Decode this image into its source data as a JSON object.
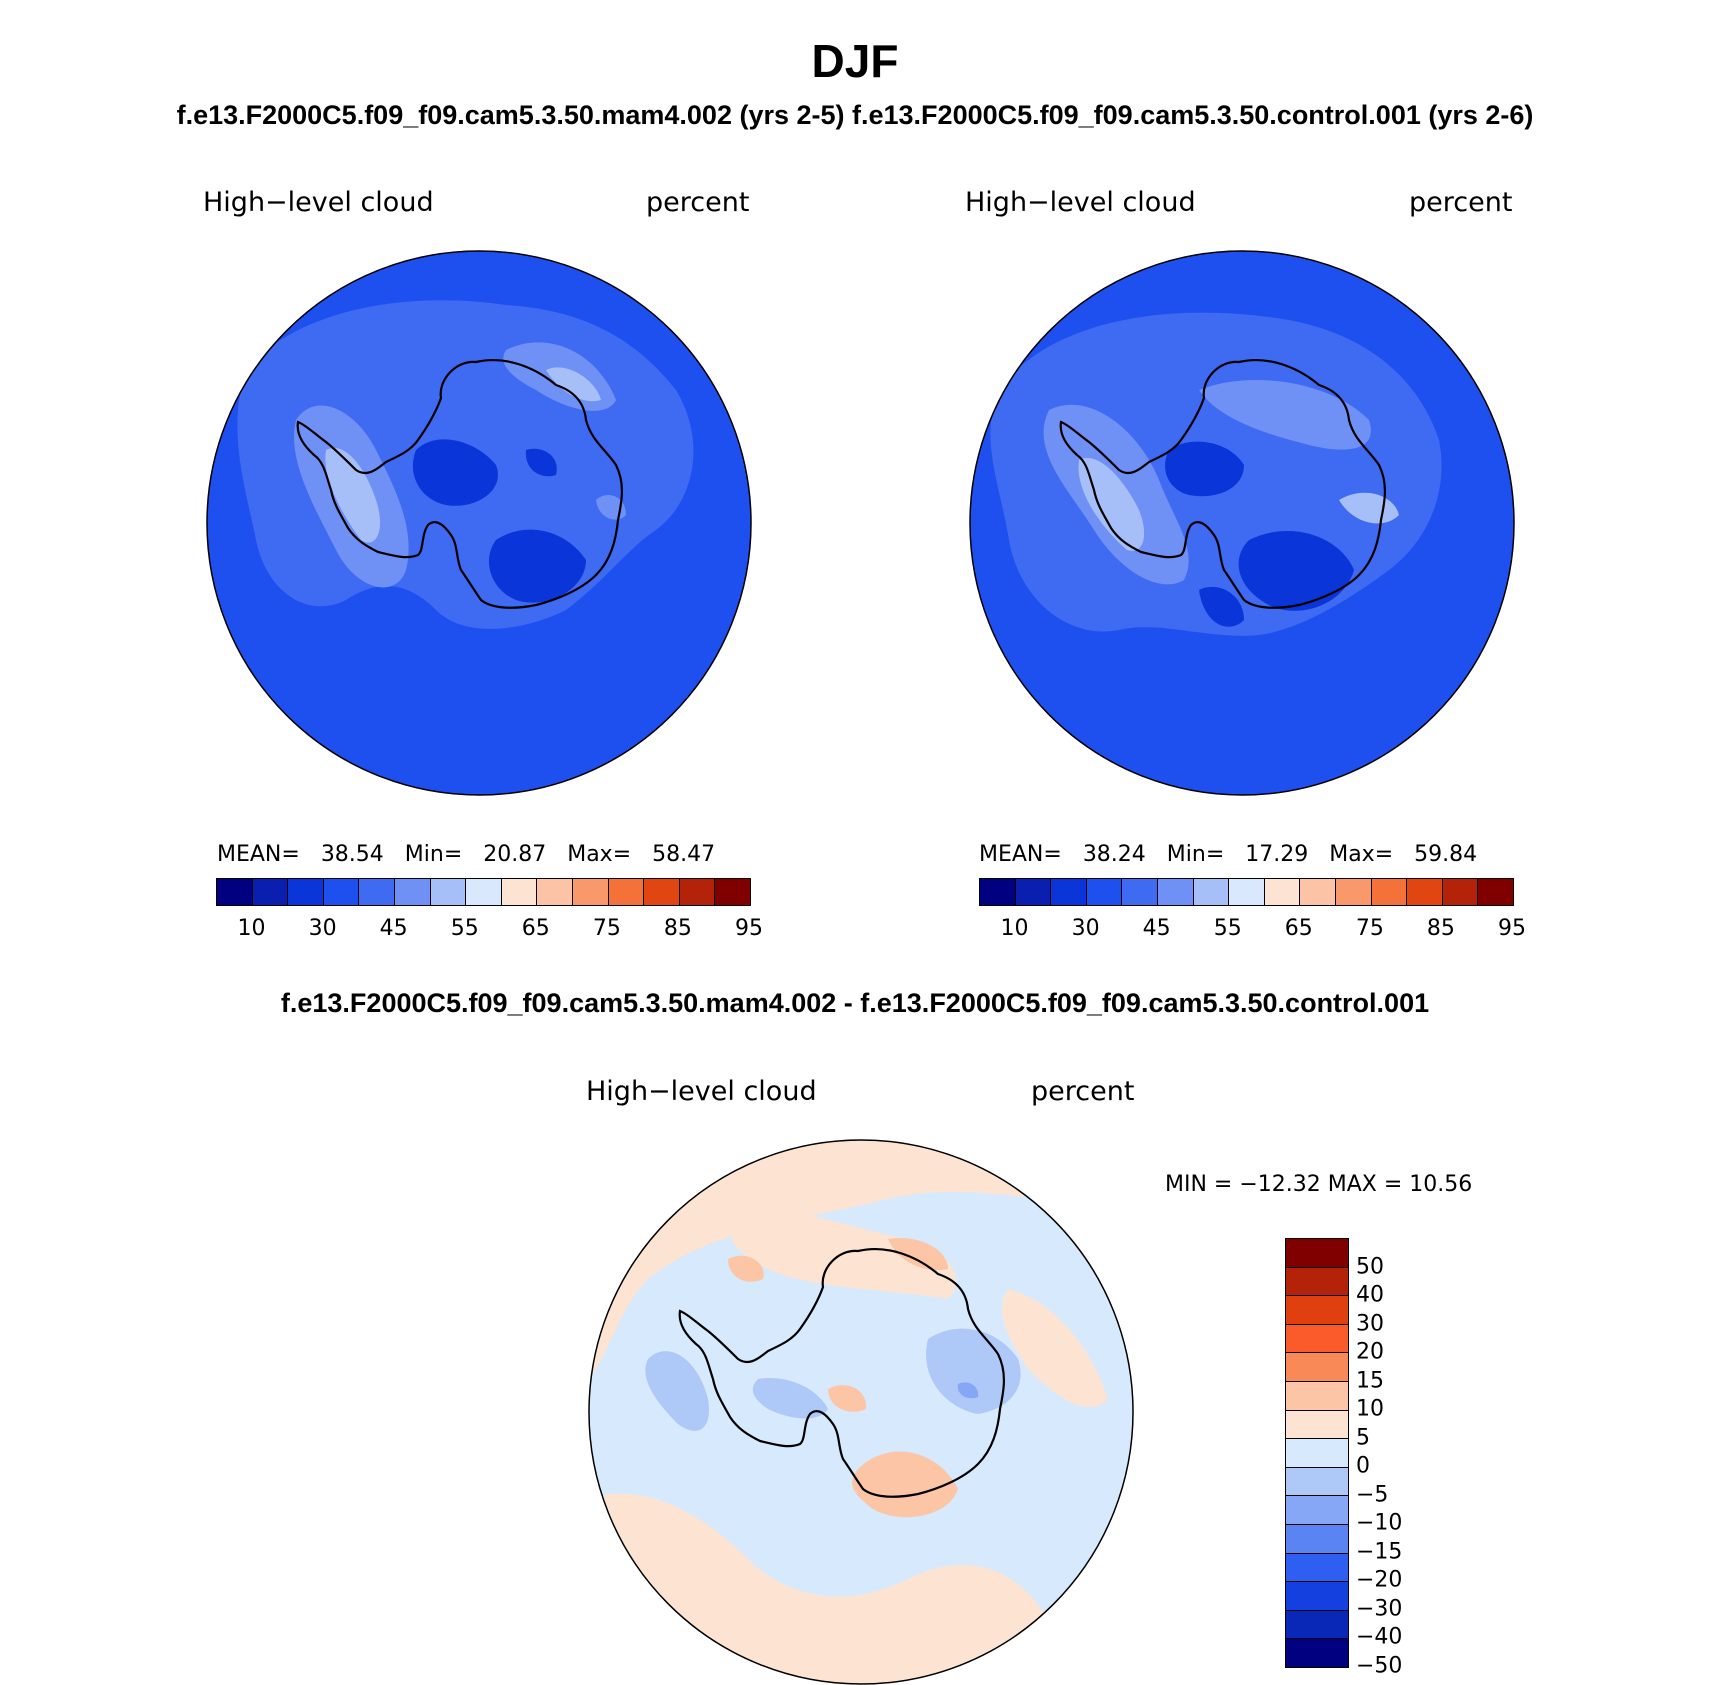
{
  "title": "DJF",
  "case_titles": "f.e13.F2000C5.f09_f09.cam5.3.50.mam4.002 (yrs 2-5) f.e13.F2000C5.f09_f09.cam5.3.50.control.001 (yrs 2-6)",
  "panels": [
    {
      "variable": "High−level cloud",
      "units": "percent",
      "stats": {
        "mean_label": "MEAN=",
        "mean": "38.54",
        "min_label": "Min=",
        "min": "20.87",
        "max_label": "Max=",
        "max": "58.47"
      }
    },
    {
      "variable": "High−level cloud",
      "units": "percent",
      "stats": {
        "mean_label": "MEAN=",
        "mean": "38.24",
        "min_label": "Min=",
        "min": "17.29",
        "max_label": "Max=",
        "max": "59.84"
      }
    }
  ],
  "colorbar": {
    "colors": [
      "#000080",
      "#0a1fb0",
      "#0a35d8",
      "#1e50f0",
      "#3f6af2",
      "#6f90f4",
      "#a7bff8",
      "#d9e8fc",
      "#fde4d2",
      "#fcc3a6",
      "#f9996b",
      "#f4723a",
      "#e14612",
      "#b5220a",
      "#800000"
    ],
    "labels": [
      "10",
      "30",
      "45",
      "55",
      "65",
      "75",
      "85",
      "95"
    ]
  },
  "diff": {
    "title": "f.e13.F2000C5.f09_f09.cam5.3.50.mam4.002 - f.e13.F2000C5.f09_f09.cam5.3.50.control.001",
    "variable": "High−level cloud",
    "units": "percent",
    "minmax": "MIN = −12.32  MAX =   10.56",
    "colorbar": {
      "colors_top_to_bottom": [
        "#800000",
        "#b5220a",
        "#e0400f",
        "#fb5a2a",
        "#f98a58",
        "#fcc6a6",
        "#fde4d2",
        "#d7e9fc",
        "#aec8f8",
        "#86a7f5",
        "#5a84f1",
        "#2f5ff0",
        "#1540e0",
        "#0a28b8",
        "#000080"
      ],
      "labels_top_to_bottom": [
        "50",
        "40",
        "30",
        "20",
        "15",
        "10",
        "5",
        "0",
        "−5",
        "−10",
        "−15",
        "−20",
        "−30",
        "−40",
        "−50"
      ]
    }
  },
  "map_colors": {
    "background_panel": "#1e50f0",
    "light_blue": "#3f6af2",
    "lighter_blue": "#6f90f4",
    "lightest_blue": "#a7bff8",
    "pale_blue": "#d9e8fc",
    "dark_blue": "#0a35d8",
    "diff_blue": "#d7e9fc",
    "diff_orange": "#fde4d2",
    "diff_orange2": "#fcc6a6",
    "diff_blue2": "#aec8f8",
    "diff_blue3": "#86a7f5"
  }
}
